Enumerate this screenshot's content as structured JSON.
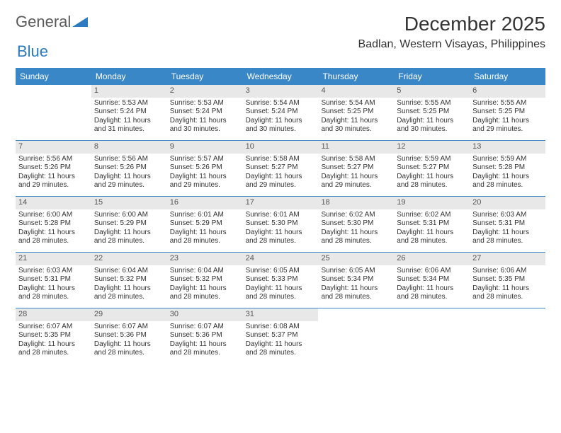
{
  "logo": {
    "text1": "General",
    "text2": "Blue"
  },
  "title": "December 2025",
  "location": "Badlan, Western Visayas, Philippines",
  "colors": {
    "header_bg": "#3a87c7",
    "header_fg": "#ffffff",
    "daynum_bg": "#e8e8e8",
    "daynum_fg": "#555555",
    "rule": "#3a87c7",
    "logo_blue": "#2c7ac0",
    "text": "#333333",
    "background": "#ffffff"
  },
  "day_headers": [
    "Sunday",
    "Monday",
    "Tuesday",
    "Wednesday",
    "Thursday",
    "Friday",
    "Saturday"
  ],
  "weeks": [
    [
      {
        "n": "",
        "sr": "",
        "ss": "",
        "dl": ""
      },
      {
        "n": "1",
        "sr": "Sunrise: 5:53 AM",
        "ss": "Sunset: 5:24 PM",
        "dl": "Daylight: 11 hours and 31 minutes."
      },
      {
        "n": "2",
        "sr": "Sunrise: 5:53 AM",
        "ss": "Sunset: 5:24 PM",
        "dl": "Daylight: 11 hours and 30 minutes."
      },
      {
        "n": "3",
        "sr": "Sunrise: 5:54 AM",
        "ss": "Sunset: 5:24 PM",
        "dl": "Daylight: 11 hours and 30 minutes."
      },
      {
        "n": "4",
        "sr": "Sunrise: 5:54 AM",
        "ss": "Sunset: 5:25 PM",
        "dl": "Daylight: 11 hours and 30 minutes."
      },
      {
        "n": "5",
        "sr": "Sunrise: 5:55 AM",
        "ss": "Sunset: 5:25 PM",
        "dl": "Daylight: 11 hours and 30 minutes."
      },
      {
        "n": "6",
        "sr": "Sunrise: 5:55 AM",
        "ss": "Sunset: 5:25 PM",
        "dl": "Daylight: 11 hours and 29 minutes."
      }
    ],
    [
      {
        "n": "7",
        "sr": "Sunrise: 5:56 AM",
        "ss": "Sunset: 5:26 PM",
        "dl": "Daylight: 11 hours and 29 minutes."
      },
      {
        "n": "8",
        "sr": "Sunrise: 5:56 AM",
        "ss": "Sunset: 5:26 PM",
        "dl": "Daylight: 11 hours and 29 minutes."
      },
      {
        "n": "9",
        "sr": "Sunrise: 5:57 AM",
        "ss": "Sunset: 5:26 PM",
        "dl": "Daylight: 11 hours and 29 minutes."
      },
      {
        "n": "10",
        "sr": "Sunrise: 5:58 AM",
        "ss": "Sunset: 5:27 PM",
        "dl": "Daylight: 11 hours and 29 minutes."
      },
      {
        "n": "11",
        "sr": "Sunrise: 5:58 AM",
        "ss": "Sunset: 5:27 PM",
        "dl": "Daylight: 11 hours and 29 minutes."
      },
      {
        "n": "12",
        "sr": "Sunrise: 5:59 AM",
        "ss": "Sunset: 5:27 PM",
        "dl": "Daylight: 11 hours and 28 minutes."
      },
      {
        "n": "13",
        "sr": "Sunrise: 5:59 AM",
        "ss": "Sunset: 5:28 PM",
        "dl": "Daylight: 11 hours and 28 minutes."
      }
    ],
    [
      {
        "n": "14",
        "sr": "Sunrise: 6:00 AM",
        "ss": "Sunset: 5:28 PM",
        "dl": "Daylight: 11 hours and 28 minutes."
      },
      {
        "n": "15",
        "sr": "Sunrise: 6:00 AM",
        "ss": "Sunset: 5:29 PM",
        "dl": "Daylight: 11 hours and 28 minutes."
      },
      {
        "n": "16",
        "sr": "Sunrise: 6:01 AM",
        "ss": "Sunset: 5:29 PM",
        "dl": "Daylight: 11 hours and 28 minutes."
      },
      {
        "n": "17",
        "sr": "Sunrise: 6:01 AM",
        "ss": "Sunset: 5:30 PM",
        "dl": "Daylight: 11 hours and 28 minutes."
      },
      {
        "n": "18",
        "sr": "Sunrise: 6:02 AM",
        "ss": "Sunset: 5:30 PM",
        "dl": "Daylight: 11 hours and 28 minutes."
      },
      {
        "n": "19",
        "sr": "Sunrise: 6:02 AM",
        "ss": "Sunset: 5:31 PM",
        "dl": "Daylight: 11 hours and 28 minutes."
      },
      {
        "n": "20",
        "sr": "Sunrise: 6:03 AM",
        "ss": "Sunset: 5:31 PM",
        "dl": "Daylight: 11 hours and 28 minutes."
      }
    ],
    [
      {
        "n": "21",
        "sr": "Sunrise: 6:03 AM",
        "ss": "Sunset: 5:31 PM",
        "dl": "Daylight: 11 hours and 28 minutes."
      },
      {
        "n": "22",
        "sr": "Sunrise: 6:04 AM",
        "ss": "Sunset: 5:32 PM",
        "dl": "Daylight: 11 hours and 28 minutes."
      },
      {
        "n": "23",
        "sr": "Sunrise: 6:04 AM",
        "ss": "Sunset: 5:32 PM",
        "dl": "Daylight: 11 hours and 28 minutes."
      },
      {
        "n": "24",
        "sr": "Sunrise: 6:05 AM",
        "ss": "Sunset: 5:33 PM",
        "dl": "Daylight: 11 hours and 28 minutes."
      },
      {
        "n": "25",
        "sr": "Sunrise: 6:05 AM",
        "ss": "Sunset: 5:34 PM",
        "dl": "Daylight: 11 hours and 28 minutes."
      },
      {
        "n": "26",
        "sr": "Sunrise: 6:06 AM",
        "ss": "Sunset: 5:34 PM",
        "dl": "Daylight: 11 hours and 28 minutes."
      },
      {
        "n": "27",
        "sr": "Sunrise: 6:06 AM",
        "ss": "Sunset: 5:35 PM",
        "dl": "Daylight: 11 hours and 28 minutes."
      }
    ],
    [
      {
        "n": "28",
        "sr": "Sunrise: 6:07 AM",
        "ss": "Sunset: 5:35 PM",
        "dl": "Daylight: 11 hours and 28 minutes."
      },
      {
        "n": "29",
        "sr": "Sunrise: 6:07 AM",
        "ss": "Sunset: 5:36 PM",
        "dl": "Daylight: 11 hours and 28 minutes."
      },
      {
        "n": "30",
        "sr": "Sunrise: 6:07 AM",
        "ss": "Sunset: 5:36 PM",
        "dl": "Daylight: 11 hours and 28 minutes."
      },
      {
        "n": "31",
        "sr": "Sunrise: 6:08 AM",
        "ss": "Sunset: 5:37 PM",
        "dl": "Daylight: 11 hours and 28 minutes."
      },
      {
        "n": "",
        "sr": "",
        "ss": "",
        "dl": ""
      },
      {
        "n": "",
        "sr": "",
        "ss": "",
        "dl": ""
      },
      {
        "n": "",
        "sr": "",
        "ss": "",
        "dl": ""
      }
    ]
  ]
}
